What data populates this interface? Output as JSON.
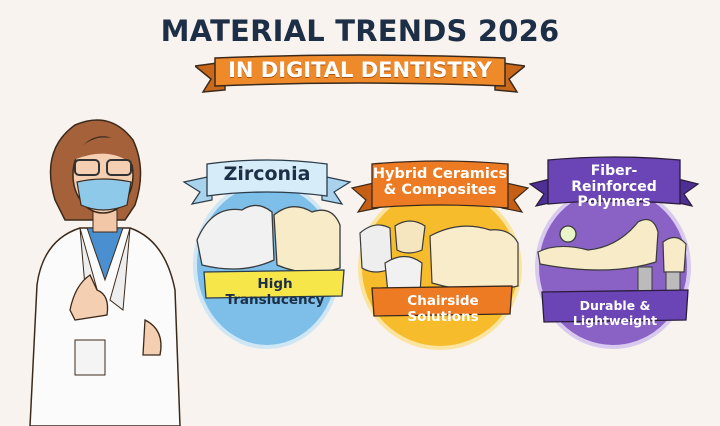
{
  "header": {
    "title": "MATERIAL TRENDS 2026",
    "subtitle": "IN DIGITAL DENTISTRY"
  },
  "cards": [
    {
      "title": "Zirconia",
      "label": "High Translucency",
      "color": "#6fb7e6",
      "ribbon_color": "#cfe8f5",
      "label_color": "#f7e64a"
    },
    {
      "title": "Hybrid Ceramics & Composites",
      "title_line1": "Hybrid Ceramics",
      "title_line2": "& Composites",
      "label": "Chairside Solutions",
      "color": "#f5b829",
      "ribbon_color": "#ec7b23",
      "label_color": "#ec7b23"
    },
    {
      "title": "Fiber-Reinforced Polymers",
      "title_line1": "Fiber-Reinforced",
      "title_line2": "Polymers",
      "label": "Durable & Lightweight",
      "color": "#8a62c6",
      "ribbon_color": "#6b45b5",
      "label_color": "#6b45b5"
    }
  ],
  "colors": {
    "title": "#1d2f46",
    "banner": "#ef8a2b",
    "background": "#f8f3ee"
  }
}
